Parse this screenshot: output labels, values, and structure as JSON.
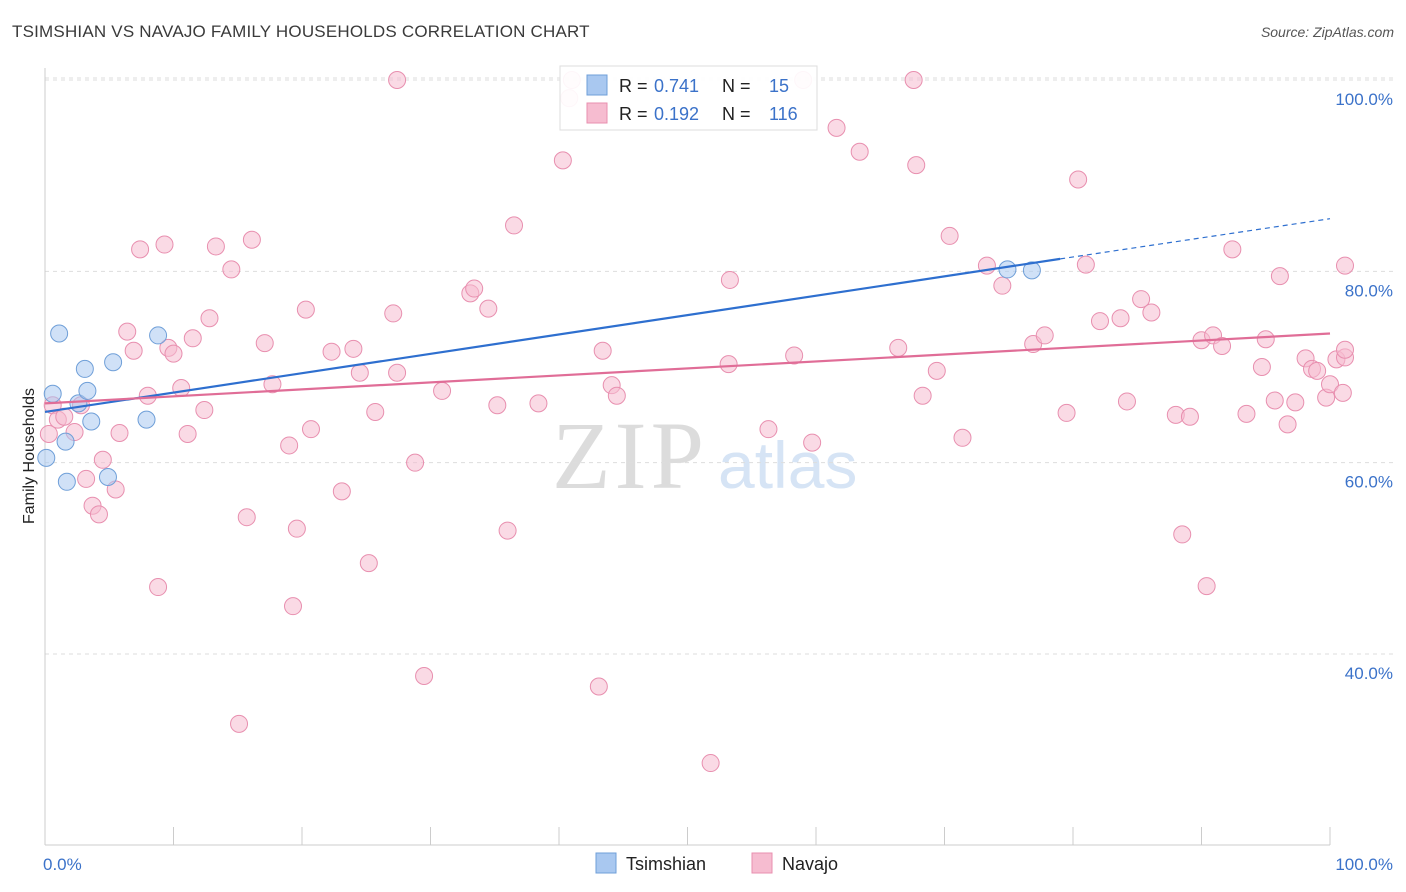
{
  "title": "TSIMSHIAN VS NAVAJO FAMILY HOUSEHOLDS CORRELATION CHART",
  "source": "Source: ZipAtlas.com",
  "watermark": {
    "zip": "ZIP",
    "atlas": "atlas"
  },
  "colors": {
    "tsimshian_fill": "#a9c8f0",
    "tsimshian_stroke": "#6f9fd8",
    "tsimshian_line": "#2e6fcf",
    "navajo_fill": "#f6bcd0",
    "navajo_stroke": "#e88faf",
    "navajo_line": "#e06d97",
    "value_blue": "#3b72c9",
    "grid": "#dddddd"
  },
  "stats_legend": [
    {
      "series": "Tsimshian",
      "r_label": "R =",
      "r_value": "0.741",
      "n_label": "N =",
      "n_value": "15"
    },
    {
      "series": "Navajo",
      "r_label": "R =",
      "r_value": "0.192",
      "n_label": "N =",
      "n_value": "116"
    }
  ],
  "chart_data": {
    "type": "scatter",
    "title": "TSIMSHIAN VS NAVAJO FAMILY HOUSEHOLDS CORRELATION CHART",
    "xlabel": "",
    "ylabel": "Family Households",
    "xlim": [
      0,
      100
    ],
    "ylim": [
      20,
      103
    ],
    "x_tick_labels": [
      "0.0%",
      "100.0%"
    ],
    "y_ticks": [
      40,
      60,
      80,
      100
    ],
    "y_tick_labels": [
      "40.0%",
      "60.0%",
      "80.0%",
      "100.0%"
    ],
    "grid": "horizontal dashed",
    "legend_position": "bottom",
    "series": [
      {
        "name": "Tsimshian",
        "points": [
          [
            0.1,
            60.5
          ],
          [
            0.6,
            67.2
          ],
          [
            1.1,
            73.5
          ],
          [
            1.6,
            62.2
          ],
          [
            1.7,
            58.0
          ],
          [
            2.6,
            66.2
          ],
          [
            3.1,
            69.8
          ],
          [
            3.3,
            67.5
          ],
          [
            3.6,
            64.3
          ],
          [
            4.9,
            58.5
          ],
          [
            5.3,
            70.5
          ],
          [
            7.9,
            64.5
          ],
          [
            8.8,
            73.3
          ],
          [
            74.9,
            80.2
          ],
          [
            76.8,
            80.1
          ]
        ],
        "trend": {
          "x": [
            0,
            79
          ],
          "y": [
            65.3,
            81.3
          ],
          "dashed_extension": {
            "x": [
              79,
              100
            ],
            "y": [
              81.3,
              85.5
            ]
          }
        }
      },
      {
        "name": "Navajo",
        "points": [
          [
            0.3,
            63.0
          ],
          [
            0.6,
            66.0
          ],
          [
            1.0,
            64.5
          ],
          [
            1.5,
            64.8
          ],
          [
            2.3,
            63.2
          ],
          [
            2.8,
            66.0
          ],
          [
            3.2,
            58.3
          ],
          [
            3.7,
            55.5
          ],
          [
            4.2,
            54.6
          ],
          [
            4.5,
            60.3
          ],
          [
            5.5,
            57.2
          ],
          [
            5.8,
            63.1
          ],
          [
            6.4,
            73.7
          ],
          [
            6.9,
            71.7
          ],
          [
            7.4,
            82.3
          ],
          [
            8.0,
            67.0
          ],
          [
            8.8,
            47.0
          ],
          [
            9.3,
            82.8
          ],
          [
            9.6,
            72.0
          ],
          [
            10.0,
            71.4
          ],
          [
            10.6,
            67.8
          ],
          [
            11.1,
            63.0
          ],
          [
            11.5,
            73.0
          ],
          [
            12.4,
            65.5
          ],
          [
            12.8,
            75.1
          ],
          [
            13.3,
            82.6
          ],
          [
            14.5,
            80.2
          ],
          [
            15.1,
            32.7
          ],
          [
            15.7,
            54.3
          ],
          [
            16.1,
            83.3
          ],
          [
            17.1,
            72.5
          ],
          [
            17.7,
            68.2
          ],
          [
            19.0,
            61.8
          ],
          [
            19.3,
            45.0
          ],
          [
            19.6,
            53.1
          ],
          [
            20.3,
            76.0
          ],
          [
            20.7,
            63.5
          ],
          [
            22.3,
            71.6
          ],
          [
            23.1,
            57.0
          ],
          [
            24.0,
            71.9
          ],
          [
            24.5,
            69.4
          ],
          [
            25.2,
            49.5
          ],
          [
            25.7,
            65.3
          ],
          [
            27.1,
            75.6
          ],
          [
            27.4,
            69.4
          ],
          [
            28.8,
            60.0
          ],
          [
            29.5,
            37.7
          ],
          [
            30.9,
            67.5
          ],
          [
            33.1,
            77.7
          ],
          [
            33.4,
            78.2
          ],
          [
            34.5,
            76.1
          ],
          [
            35.2,
            66.0
          ],
          [
            36.0,
            52.9
          ],
          [
            36.5,
            84.8
          ],
          [
            38.4,
            66.2
          ],
          [
            40.3,
            91.6
          ],
          [
            40.8,
            98.1
          ],
          [
            41.0,
            100.0
          ],
          [
            43.1,
            36.6
          ],
          [
            43.4,
            71.7
          ],
          [
            44.1,
            68.1
          ],
          [
            44.5,
            67.0
          ],
          [
            51.8,
            28.6
          ],
          [
            53.2,
            70.3
          ],
          [
            53.3,
            79.1
          ],
          [
            56.3,
            63.5
          ],
          [
            58.3,
            71.2
          ],
          [
            59.7,
            62.1
          ],
          [
            61.6,
            95.0
          ],
          [
            63.4,
            92.5
          ],
          [
            66.4,
            72.0
          ],
          [
            67.8,
            91.1
          ],
          [
            68.3,
            67.0
          ],
          [
            69.4,
            69.6
          ],
          [
            70.4,
            83.7
          ],
          [
            71.4,
            62.6
          ],
          [
            73.3,
            80.6
          ],
          [
            74.5,
            78.5
          ],
          [
            76.9,
            72.4
          ],
          [
            77.8,
            73.3
          ],
          [
            79.5,
            65.2
          ],
          [
            80.4,
            89.6
          ],
          [
            81.0,
            80.7
          ],
          [
            82.1,
            74.8
          ],
          [
            83.7,
            75.1
          ],
          [
            84.2,
            66.4
          ],
          [
            85.3,
            77.1
          ],
          [
            86.1,
            75.7
          ],
          [
            88.0,
            65.0
          ],
          [
            88.5,
            52.5
          ],
          [
            89.1,
            64.8
          ],
          [
            90.0,
            72.8
          ],
          [
            90.4,
            47.1
          ],
          [
            90.9,
            73.3
          ],
          [
            91.6,
            72.2
          ],
          [
            92.4,
            82.3
          ],
          [
            93.5,
            65.1
          ],
          [
            94.7,
            70.0
          ],
          [
            95.0,
            72.9
          ],
          [
            95.7,
            66.5
          ],
          [
            96.1,
            79.5
          ],
          [
            96.7,
            64.0
          ],
          [
            97.3,
            66.3
          ],
          [
            98.1,
            70.9
          ],
          [
            98.6,
            69.8
          ],
          [
            99.0,
            69.6
          ],
          [
            99.7,
            66.8
          ],
          [
            100.0,
            68.2
          ],
          [
            100.5,
            70.8
          ],
          [
            101.0,
            67.3
          ],
          [
            101.5,
            71.0
          ],
          [
            101.8,
            80.6
          ],
          [
            102.1,
            71.8
          ],
          [
            27.4,
            100.0
          ],
          [
            59.0,
            100.0
          ],
          [
            67.6,
            100.0
          ]
        ],
        "trend": {
          "x": [
            0,
            100
          ],
          "y": [
            66.2,
            73.5
          ]
        }
      }
    ]
  }
}
